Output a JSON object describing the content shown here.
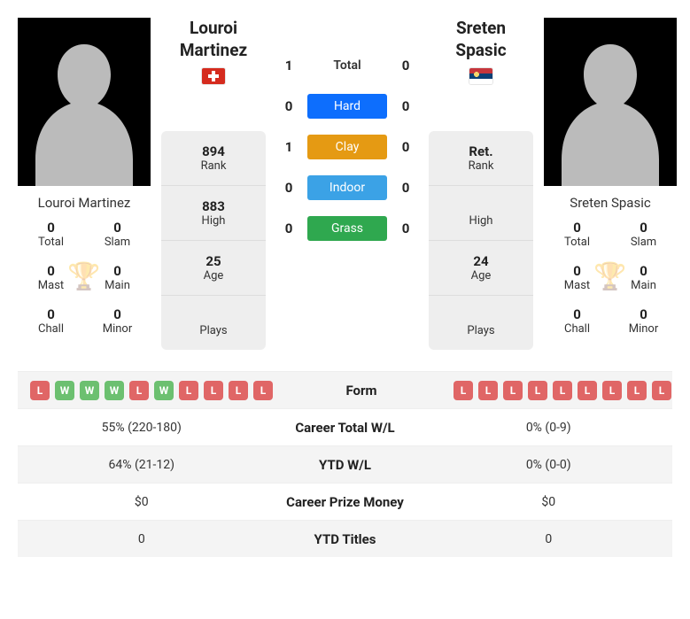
{
  "player1": {
    "first_name": "Louroi",
    "last_name": "Martinez",
    "full_name": "Louroi Martinez",
    "flag_class": "ch",
    "titles": {
      "total_num": "0",
      "total_lbl": "Total",
      "slam_num": "0",
      "slam_lbl": "Slam",
      "mast_num": "0",
      "mast_lbl": "Mast",
      "main_num": "0",
      "main_lbl": "Main",
      "chall_num": "0",
      "chall_lbl": "Chall",
      "minor_num": "0",
      "minor_lbl": "Minor"
    },
    "stats": {
      "rank_v": "894",
      "rank_l": "Rank",
      "high_v": "883",
      "high_l": "High",
      "age_v": "25",
      "age_l": "Age",
      "plays_v": "",
      "plays_l": "Plays"
    },
    "form": [
      "L",
      "W",
      "W",
      "W",
      "L",
      "W",
      "L",
      "L",
      "L",
      "L"
    ]
  },
  "player2": {
    "first_name": "Sreten",
    "last_name": "Spasic",
    "full_name": "Sreten Spasic",
    "flag_class": "rs",
    "titles": {
      "total_num": "0",
      "total_lbl": "Total",
      "slam_num": "0",
      "slam_lbl": "Slam",
      "mast_num": "0",
      "mast_lbl": "Mast",
      "main_num": "0",
      "main_lbl": "Main",
      "chall_num": "0",
      "chall_lbl": "Chall",
      "minor_num": "0",
      "minor_lbl": "Minor"
    },
    "stats": {
      "rank_v": "Ret.",
      "rank_l": "Rank",
      "high_v": "",
      "high_l": "High",
      "age_v": "24",
      "age_l": "Age",
      "plays_v": "",
      "plays_l": "Plays"
    },
    "form": [
      "L",
      "L",
      "L",
      "L",
      "L",
      "L",
      "L",
      "L",
      "L"
    ]
  },
  "h2h": {
    "total": {
      "p1": "1",
      "label": "Total",
      "p2": "0",
      "cls": "total-lbl"
    },
    "hard": {
      "p1": "0",
      "label": "Hard",
      "p2": "0",
      "cls": "hard"
    },
    "clay": {
      "p1": "1",
      "label": "Clay",
      "p2": "0",
      "cls": "clay"
    },
    "indoor": {
      "p1": "0",
      "label": "Indoor",
      "p2": "0",
      "cls": "indoor"
    },
    "grass": {
      "p1": "0",
      "label": "Grass",
      "p2": "0",
      "cls": "grass"
    }
  },
  "table": {
    "form_label": "Form",
    "rows": [
      {
        "p1": "55% (220-180)",
        "label": "Career Total W/L",
        "p2": "0% (0-9)"
      },
      {
        "p1": "64% (21-12)",
        "label": "YTD W/L",
        "p2": "0% (0-0)"
      },
      {
        "p1": "$0",
        "label": "Career Prize Money",
        "p2": "$0"
      },
      {
        "p1": "0",
        "label": "YTD Titles",
        "p2": "0"
      }
    ]
  },
  "colors": {
    "win": "#6cc070",
    "loss": "#e06666",
    "hard": "#0d6efd",
    "clay": "#e59a13",
    "indoor": "#3ba2e6",
    "grass": "#2fa84f"
  }
}
